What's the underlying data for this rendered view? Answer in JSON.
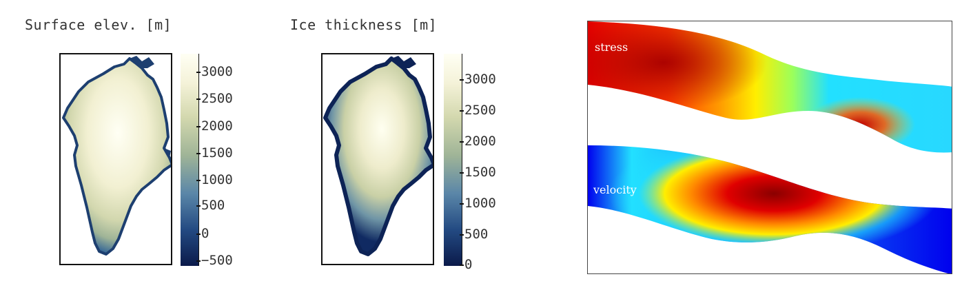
{
  "panels": [
    {
      "title": "Surface elev. [m]",
      "colorbar": {
        "ticks": [
          "3000",
          "2500",
          "2000",
          "1500",
          "1000",
          "500",
          "0",
          "−500"
        ],
        "range": [
          -600,
          3300
        ],
        "colors": [
          "#0b1a4a",
          "#234a82",
          "#5a86a8",
          "#9fb497",
          "#d3d8ae",
          "#f4f2d8",
          "#fffff4"
        ]
      }
    },
    {
      "title": "Ice thickness [m]",
      "colorbar": {
        "ticks": [
          "3000",
          "2500",
          "2000",
          "1500",
          "1000",
          "500",
          "0"
        ],
        "range": [
          0,
          3400
        ],
        "colors": [
          "#0b1a4a",
          "#234a82",
          "#5a86a8",
          "#9fb497",
          "#d3d8ae",
          "#f4f2d8",
          "#fffff4"
        ]
      }
    }
  ],
  "flow_panel": {
    "labels": {
      "stress": "stress",
      "velocity": "velocity"
    },
    "colors": {
      "dark_red": "#8a0000",
      "red": "#e00000",
      "orange": "#ff8a00",
      "yellow": "#ffee00",
      "cyan": "#22e0ff",
      "blue": "#0000ee"
    }
  }
}
